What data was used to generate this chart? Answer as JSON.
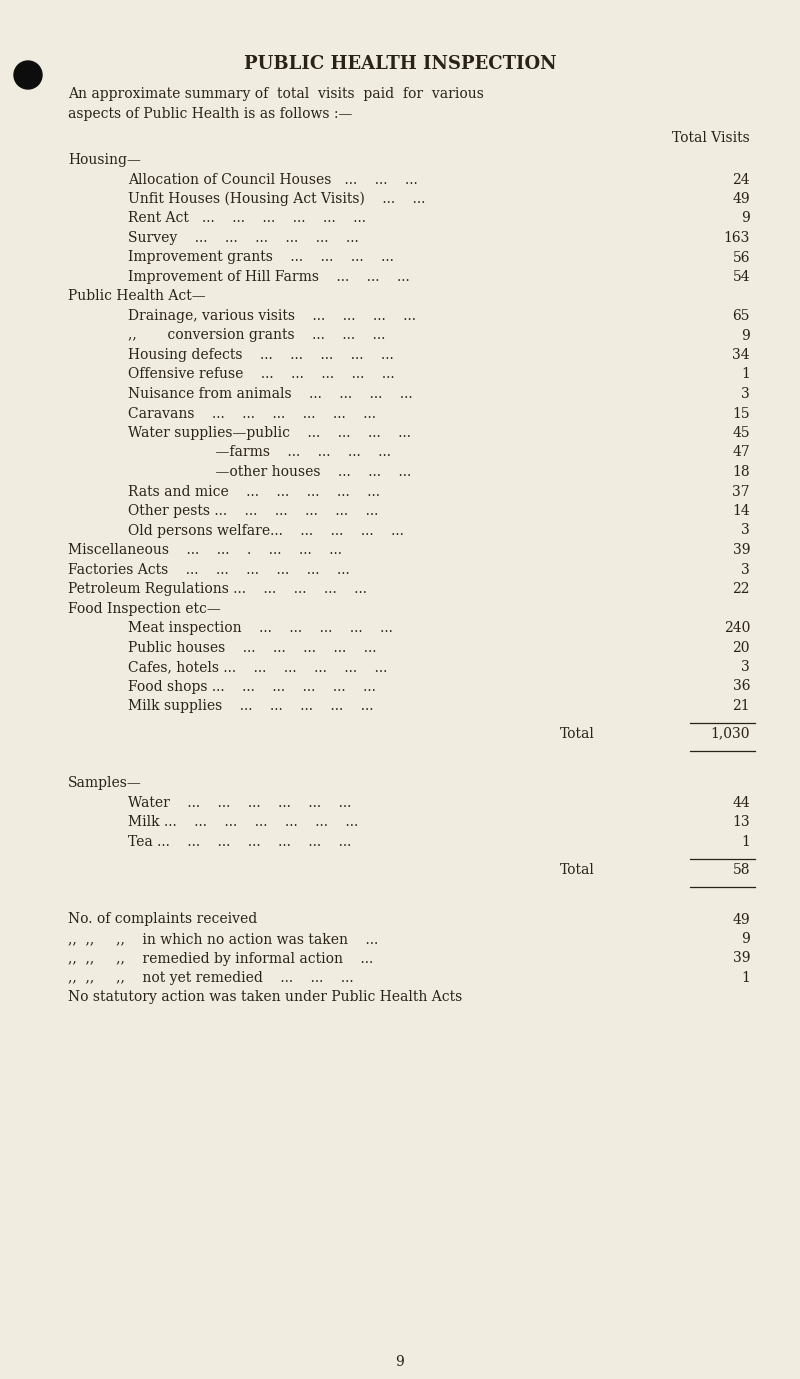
{
  "title": "PUBLIC HEALTH INSPECTION",
  "intro_line1": "An approximate summary of  total  visits  paid  for  various",
  "intro_line2": "aspects of Public Health is as follows :—",
  "col_header": "Total Visits",
  "bg_color": "#f0ece0",
  "text_color": "#2a2218",
  "lines": [
    {
      "text": "Housing—",
      "indent": 0,
      "value": null,
      "type": "normal"
    },
    {
      "text": "Allocation of Council Houses   ...    ...    ...   ",
      "indent": 1,
      "value": "24",
      "type": "normal"
    },
    {
      "text": "Unfit Houses (Housing Act Visits)    ...    ...   ",
      "indent": 1,
      "value": "49",
      "type": "normal"
    },
    {
      "text": "Rent Act   ...    ...    ...    ...    ...    ...   ",
      "indent": 1,
      "value": "9",
      "type": "normal"
    },
    {
      "text": "Survey    ...    ...    ...    ...    ...    ...   ",
      "indent": 1,
      "value": "163",
      "type": "normal"
    },
    {
      "text": "Improvement grants    ...    ...    ...    ...   ",
      "indent": 1,
      "value": "56",
      "type": "normal"
    },
    {
      "text": "Improvement of Hill Farms    ...    ...    ...   ",
      "indent": 1,
      "value": "54",
      "type": "normal"
    },
    {
      "text": "Public Health Act—",
      "indent": 0,
      "value": null,
      "type": "normal"
    },
    {
      "text": "Drainage, various visits    ...    ...    ...    ...   ",
      "indent": 1,
      "value": "65",
      "type": "normal"
    },
    {
      "text": ",,       conversion grants    ...    ...    ...   ",
      "indent": 1,
      "value": "9",
      "type": "normal"
    },
    {
      "text": "Housing defects    ...    ...    ...    ...    ...   ",
      "indent": 1,
      "value": "34",
      "type": "normal"
    },
    {
      "text": "Offensive refuse    ...    ...    ...    ...    ...   ",
      "indent": 1,
      "value": "1",
      "type": "normal"
    },
    {
      "text": "Nuisance from animals    ...    ...    ...    ...   ",
      "indent": 1,
      "value": "3",
      "type": "normal"
    },
    {
      "text": "Caravans    ...    ...    ...    ...    ...    ...   ",
      "indent": 1,
      "value": "15",
      "type": "normal"
    },
    {
      "text": "Water supplies—public    ...    ...    ...    ...   ",
      "indent": 1,
      "value": "45",
      "type": "normal"
    },
    {
      "text": "                    —farms    ...    ...    ...    ...   ",
      "indent": 1,
      "value": "47",
      "type": "normal"
    },
    {
      "text": "                    —other houses    ...    ...    ...   ",
      "indent": 1,
      "value": "18",
      "type": "normal"
    },
    {
      "text": "Rats and mice    ...    ...    ...    ...    ...   ",
      "indent": 1,
      "value": "37",
      "type": "normal"
    },
    {
      "text": "Other pests ...    ...    ...    ...    ...    ...   ",
      "indent": 1,
      "value": "14",
      "type": "normal"
    },
    {
      "text": "Old persons welfare...    ...    ...    ...    ...   ",
      "indent": 1,
      "value": "3",
      "type": "normal"
    },
    {
      "text": "Miscellaneous    ...    ...    .    ...    ...    ...   ",
      "indent": 0,
      "value": "39",
      "type": "normal"
    },
    {
      "text": "Factories Acts    ...    ...    ...    ...    ...    ...   ",
      "indent": 0,
      "value": "3",
      "type": "normal"
    },
    {
      "text": "Petroleum Regulations ...    ...    ...    ...    ...   ",
      "indent": 0,
      "value": "22",
      "type": "normal"
    },
    {
      "text": "Food Inspection etc—",
      "indent": 0,
      "value": null,
      "type": "normal"
    },
    {
      "text": "Meat inspection    ...    ...    ...    ...    ...   ",
      "indent": 1,
      "value": "240",
      "type": "normal"
    },
    {
      "text": "Public houses    ...    ...    ...    ...    ...   ",
      "indent": 1,
      "value": "20",
      "type": "normal"
    },
    {
      "text": "Cafes, hotels ...    ...    ...    ...    ...    ...   ",
      "indent": 1,
      "value": "3",
      "type": "normal"
    },
    {
      "text": "Food shops ...    ...    ...    ...    ...    ...   ",
      "indent": 1,
      "value": "36",
      "type": "normal"
    },
    {
      "text": "Milk supplies    ...    ...    ...    ...    ...   ",
      "indent": 1,
      "value": "21",
      "type": "normal"
    },
    {
      "text": "",
      "indent": 0,
      "value": null,
      "type": "rule"
    },
    {
      "text": "Total",
      "indent": 3,
      "value": "1,030",
      "type": "total"
    },
    {
      "text": "",
      "indent": 0,
      "value": null,
      "type": "rule"
    },
    {
      "text": "",
      "indent": 0,
      "value": null,
      "type": "blank"
    },
    {
      "text": "Samples—",
      "indent": 0,
      "value": null,
      "type": "normal"
    },
    {
      "text": "Water    ...    ...    ...    ...    ...    ...   ",
      "indent": 1,
      "value": "44",
      "type": "normal"
    },
    {
      "text": "Milk ...    ...    ...    ...    ...    ...    ...   ",
      "indent": 1,
      "value": "13",
      "type": "normal"
    },
    {
      "text": "Tea ...    ...    ...    ...    ...    ...    ...   ",
      "indent": 1,
      "value": "1",
      "type": "normal"
    },
    {
      "text": "",
      "indent": 0,
      "value": null,
      "type": "rule"
    },
    {
      "text": "Total",
      "indent": 3,
      "value": "58",
      "type": "total"
    },
    {
      "text": "",
      "indent": 0,
      "value": null,
      "type": "rule"
    },
    {
      "text": "",
      "indent": 0,
      "value": null,
      "type": "blank"
    },
    {
      "text": "No. of complaints received",
      "indent": 0,
      "value": "49",
      "type": "normal"
    },
    {
      "text": ",,  ,,     ,,    in which no action was taken    ...   ",
      "indent": 0,
      "value": "9",
      "type": "normal"
    },
    {
      "text": ",,  ,,     ,,    remedied by informal action    ...   ",
      "indent": 0,
      "value": "39",
      "type": "normal"
    },
    {
      "text": ",,  ,,     ,,    not yet remedied    ...    ...    ...   ",
      "indent": 0,
      "value": "1",
      "type": "normal"
    },
    {
      "text": "No statutory action was taken under Public Health Acts",
      "indent": 0,
      "value": null,
      "type": "normal"
    }
  ],
  "footer": "9"
}
